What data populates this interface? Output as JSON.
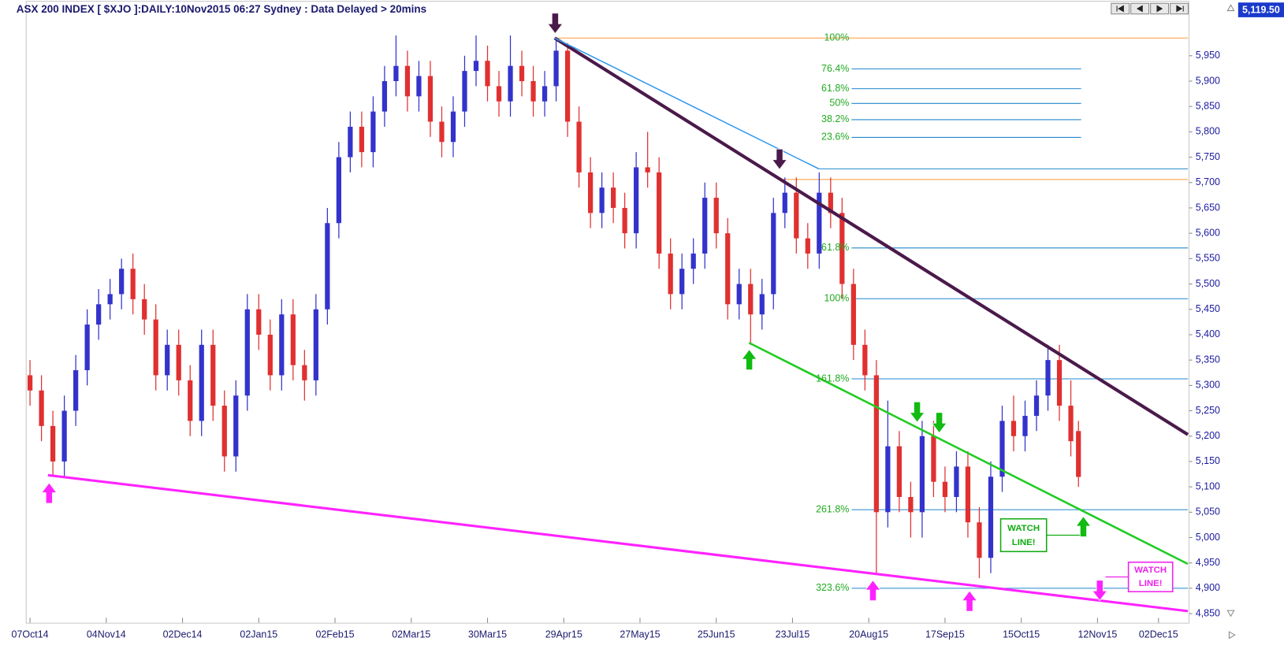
{
  "chart_data": {
    "type": "candlestick",
    "title": "ASX 200 INDEX [ $XJO ]:DAILY:10Nov2015 06:27 Sydney : Data Delayed > 20mins",
    "last_price": {
      "value": 5119.5,
      "label": "5,119.50"
    },
    "up_color": "#3333cc",
    "down_color": "#e03030",
    "x": [
      0,
      3,
      6,
      9,
      12,
      15,
      18,
      21,
      24,
      27,
      30,
      33,
      36,
      39,
      42,
      45,
      48,
      51,
      54,
      57,
      60,
      63,
      66,
      69,
      72,
      75,
      78,
      81,
      84,
      87,
      90,
      93,
      96,
      99,
      102,
      105,
      108,
      111,
      114,
      117,
      120,
      123,
      126,
      129,
      132,
      135,
      138,
      141,
      144,
      147,
      150,
      153,
      156,
      159,
      162,
      165,
      168,
      171,
      174,
      177,
      180,
      183,
      186,
      189,
      192,
      195,
      198,
      201,
      204,
      207,
      210,
      213,
      216,
      219,
      222,
      225,
      228,
      231,
      234,
      237,
      240,
      243,
      246,
      249,
      252,
      255,
      258,
      261,
      264,
      267,
      270,
      273,
      275
    ],
    "open": [
      5320,
      5290,
      5220,
      5150,
      5250,
      5330,
      5420,
      5460,
      5480,
      5530,
      5470,
      5430,
      5320,
      5380,
      5310,
      5230,
      5380,
      5260,
      5160,
      5280,
      5450,
      5400,
      5320,
      5440,
      5340,
      5310,
      5450,
      5620,
      5750,
      5810,
      5760,
      5840,
      5900,
      5930,
      5870,
      5910,
      5820,
      5780,
      5840,
      5920,
      5940,
      5890,
      5860,
      5930,
      5900,
      5860,
      5890,
      5960,
      5820,
      5720,
      5640,
      5690,
      5650,
      5600,
      5730,
      5720,
      5560,
      5480,
      5530,
      5560,
      5670,
      5600,
      5460,
      5500,
      5440,
      5480,
      5640,
      5680,
      5590,
      5560,
      5680,
      5640,
      5500,
      5380,
      5320,
      5050,
      5180,
      5080,
      5050,
      5200,
      5110,
      5080,
      5140,
      5030,
      4960,
      5120,
      5230,
      5200,
      5240,
      5280,
      5350,
      5260,
      5210
    ],
    "high": [
      5350,
      5320,
      5250,
      5280,
      5360,
      5450,
      5490,
      5510,
      5550,
      5560,
      5500,
      5460,
      5410,
      5410,
      5340,
      5410,
      5410,
      5290,
      5310,
      5480,
      5480,
      5430,
      5470,
      5470,
      5370,
      5480,
      5650,
      5780,
      5840,
      5840,
      5870,
      5930,
      5990,
      5960,
      5940,
      5940,
      5850,
      5870,
      5950,
      5990,
      5970,
      5920,
      5990,
      5960,
      5930,
      5920,
      5985,
      5975,
      5850,
      5750,
      5720,
      5720,
      5680,
      5760,
      5800,
      5750,
      5590,
      5560,
      5590,
      5700,
      5700,
      5630,
      5530,
      5530,
      5510,
      5670,
      5710,
      5710,
      5620,
      5720,
      5710,
      5670,
      5530,
      5410,
      5350,
      5270,
      5210,
      5110,
      5230,
      5230,
      5140,
      5170,
      5170,
      5060,
      5150,
      5260,
      5280,
      5270,
      5310,
      5380,
      5380,
      5310,
      5230
    ],
    "low": [
      5260,
      5190,
      5120,
      5120,
      5220,
      5300,
      5390,
      5430,
      5450,
      5440,
      5400,
      5290,
      5290,
      5280,
      5200,
      5200,
      5230,
      5130,
      5130,
      5250,
      5370,
      5290,
      5290,
      5310,
      5270,
      5280,
      5420,
      5590,
      5720,
      5730,
      5730,
      5810,
      5870,
      5840,
      5840,
      5790,
      5750,
      5750,
      5810,
      5890,
      5860,
      5830,
      5830,
      5870,
      5830,
      5830,
      5860,
      5790,
      5690,
      5610,
      5610,
      5620,
      5570,
      5570,
      5690,
      5530,
      5450,
      5450,
      5500,
      5530,
      5570,
      5430,
      5430,
      5380,
      5410,
      5450,
      5610,
      5560,
      5530,
      5530,
      5610,
      5470,
      5350,
      5290,
      4930,
      5020,
      5050,
      5000,
      5000,
      5080,
      5050,
      5050,
      5000,
      4920,
      4930,
      5090,
      5170,
      5170,
      5210,
      5250,
      5230,
      5160,
      5100
    ],
    "close": [
      5290,
      5220,
      5150,
      5250,
      5330,
      5420,
      5460,
      5480,
      5530,
      5470,
      5430,
      5320,
      5380,
      5310,
      5230,
      5380,
      5260,
      5160,
      5280,
      5450,
      5400,
      5320,
      5440,
      5340,
      5310,
      5450,
      5620,
      5750,
      5810,
      5760,
      5840,
      5900,
      5930,
      5870,
      5910,
      5820,
      5780,
      5840,
      5920,
      5940,
      5890,
      5860,
      5930,
      5900,
      5860,
      5890,
      5960,
      5820,
      5720,
      5640,
      5690,
      5650,
      5600,
      5730,
      5720,
      5560,
      5480,
      5530,
      5560,
      5670,
      5600,
      5460,
      5500,
      5440,
      5480,
      5640,
      5680,
      5590,
      5560,
      5680,
      5640,
      5500,
      5380,
      5320,
      5050,
      5180,
      5080,
      5050,
      5200,
      5110,
      5080,
      5140,
      5030,
      4960,
      5120,
      5230,
      5200,
      5240,
      5280,
      5350,
      5260,
      5190,
      5119.5
    ],
    "xlim": [
      -1,
      304
    ],
    "xticks": [
      {
        "value": 0,
        "label": "07Oct14"
      },
      {
        "value": 20,
        "label": "04Nov14"
      },
      {
        "value": 40,
        "label": "02Dec14"
      },
      {
        "value": 60,
        "label": "02Jan15"
      },
      {
        "value": 80,
        "label": "02Feb15"
      },
      {
        "value": 100,
        "label": "02Mar15"
      },
      {
        "value": 120,
        "label": "30Mar15"
      },
      {
        "value": 140,
        "label": "29Apr15"
      },
      {
        "value": 160,
        "label": "27May15"
      },
      {
        "value": 180,
        "label": "25Jun15"
      },
      {
        "value": 200,
        "label": "23Jul15"
      },
      {
        "value": 220,
        "label": "20Aug15"
      },
      {
        "value": 240,
        "label": "17Sep15"
      },
      {
        "value": 260,
        "label": "15Oct15"
      },
      {
        "value": 280,
        "label": "12Nov15"
      },
      {
        "value": 296,
        "label": "02Dec15"
      }
    ],
    "ylim": [
      4832,
      6034
    ],
    "yticks": [
      {
        "value": 4850,
        "label": "4,850"
      },
      {
        "value": 4900,
        "label": "4,900"
      },
      {
        "value": 4950,
        "label": "4,950"
      },
      {
        "value": 5000,
        "label": "5,000"
      },
      {
        "value": 5050,
        "label": "5,050"
      },
      {
        "value": 5100,
        "label": "5,100"
      },
      {
        "value": 5150,
        "label": "5,150"
      },
      {
        "value": 5200,
        "label": "5,200"
      },
      {
        "value": 5250,
        "label": "5,250"
      },
      {
        "value": 5300,
        "label": "5,300"
      },
      {
        "value": 5350,
        "label": "5,350"
      },
      {
        "value": 5400,
        "label": "5,400"
      },
      {
        "value": 5450,
        "label": "5,450"
      },
      {
        "value": 5500,
        "label": "5,500"
      },
      {
        "value": 5550,
        "label": "5,550"
      },
      {
        "value": 5600,
        "label": "5,600"
      },
      {
        "value": 5650,
        "label": "5,650"
      },
      {
        "value": 5700,
        "label": "5,700"
      },
      {
        "value": 5750,
        "label": "5,750"
      },
      {
        "value": 5800,
        "label": "5,800"
      },
      {
        "value": 5850,
        "label": "5,850"
      },
      {
        "value": 5900,
        "label": "5,900"
      },
      {
        "value": 5950,
        "label": "5,950"
      }
    ],
    "fib_levels": [
      {
        "label": "100%",
        "value": 5985,
        "color": "#ff9933",
        "x": [
          137.6,
          303.7
        ]
      },
      {
        "label": "76.4%",
        "value": 5924,
        "color": "#2288cc",
        "x": [
          215.5,
          275.7
        ]
      },
      {
        "label": "61.8%",
        "value": 5885,
        "color": "#2288cc",
        "x": [
          215.5,
          275.7
        ]
      },
      {
        "label": "50%",
        "value": 5856,
        "color": "#2288cc",
        "x": [
          215.5,
          275.7
        ]
      },
      {
        "label": "38.2%",
        "value": 5824,
        "color": "#2288cc",
        "x": [
          215.5,
          275.7
        ]
      },
      {
        "label": "23.6%",
        "value": 5789,
        "color": "#2288cc",
        "x": [
          215.5,
          275.7
        ]
      },
      {
        "value": 5727,
        "color": "#2288cc",
        "x": [
          206.9,
          303.7
        ]
      },
      {
        "value": 5706,
        "color": "#ff9933",
        "x": [
          197.2,
          303.7
        ]
      },
      {
        "label": "61.8%",
        "value": 5571,
        "color": "#2288cc",
        "x": [
          215.5,
          303.7
        ]
      },
      {
        "label": "100%",
        "value": 5471,
        "color": "#2288cc",
        "x": [
          215.5,
          303.7
        ]
      },
      {
        "label": "161.8%",
        "value": 5313,
        "color": "#2288cc",
        "x": [
          215.5,
          303.7
        ]
      },
      {
        "label": "261.8%",
        "value": 5055,
        "color": "#2288cc",
        "x": [
          215.5,
          303.7
        ]
      },
      {
        "label": "323.6%",
        "value": 4900,
        "color": "#2288cc",
        "x": [
          215.5,
          303.7
        ]
      }
    ],
    "trend_lines": [
      {
        "color": "#4a1a4a",
        "width": 4,
        "x": [
          137.6,
          303.7
        ],
        "y": [
          5985,
          5203
        ]
      },
      {
        "color": "#3399ee",
        "width": 1.5,
        "x": [
          137.6,
          206.9
        ],
        "y": [
          5985,
          5727
        ]
      },
      {
        "color": "#22cc22",
        "width": 2.5,
        "x": [
          188.6,
          303.7
        ],
        "y": [
          5384,
          4948
        ]
      },
      {
        "color": "#ff22ff",
        "width": 3,
        "x": [
          4.7,
          303.7
        ],
        "y": [
          5123,
          4855
        ]
      }
    ],
    "annotations": [
      {
        "lines": [
          "WATCH",
          "LINE!"
        ],
        "color": "#11aa11"
      },
      {
        "lines": [
          "WATCH",
          "LINE!"
        ],
        "color": "#ee22ee"
      }
    ]
  }
}
